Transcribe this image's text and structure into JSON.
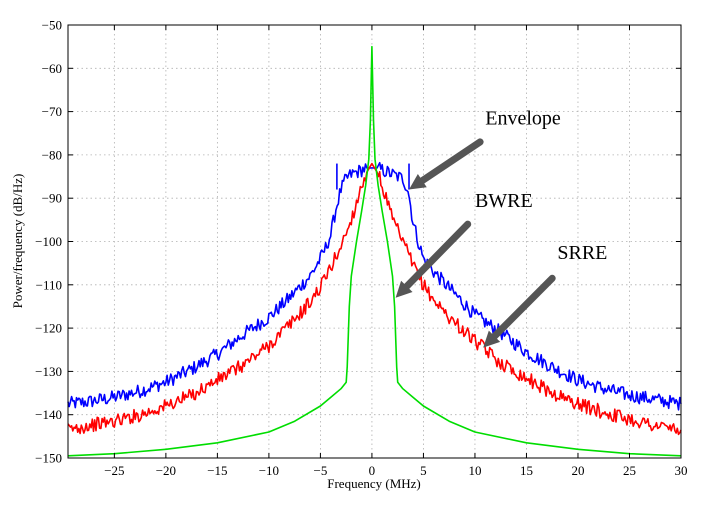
{
  "chart_data": {
    "type": "line",
    "title": "",
    "xlabel": "Frequency (MHz)",
    "ylabel": "Power/frequency (dB/Hz)",
    "xlim": [
      -29.5,
      30
    ],
    "ylim": [
      -150,
      -50
    ],
    "grid": true,
    "x_ticks": [
      -25,
      -20,
      -15,
      -10,
      -5,
      0,
      5,
      10,
      15,
      20,
      25,
      30
    ],
    "y_ticks": [
      -50,
      -60,
      -70,
      -80,
      -90,
      -100,
      -110,
      -120,
      -130,
      -140,
      -150
    ],
    "x_tick_labels": [
      "−25",
      "−20",
      "−15",
      "−10",
      "−5",
      "0",
      "5",
      "10",
      "15",
      "20",
      "25",
      "30"
    ],
    "y_tick_labels": [
      "−50",
      "−60",
      "−70",
      "−80",
      "−90",
      "−100",
      "−110",
      "−120",
      "−130",
      "−140",
      "−150"
    ],
    "series": [
      {
        "color": "#0000ff",
        "points": [
          [
            -29.5,
            -137.5
          ],
          [
            -27.5,
            -137
          ],
          [
            -25,
            -136
          ],
          [
            -22.5,
            -134.5
          ],
          [
            -20,
            -132.5
          ],
          [
            -17.5,
            -129.5
          ],
          [
            -15,
            -126
          ],
          [
            -12.5,
            -121.5
          ],
          [
            -10,
            -117.5
          ],
          [
            -8,
            -113
          ],
          [
            -6,
            -108
          ],
          [
            -5,
            -104
          ],
          [
            -4.5,
            -101.5
          ],
          [
            -4,
            -98.5
          ],
          [
            -3.5,
            -92.5
          ],
          [
            -3,
            -88
          ],
          [
            -2.5,
            -85.5
          ],
          [
            -2,
            -84.5
          ],
          [
            -1.5,
            -84
          ],
          [
            -1,
            -83.5
          ],
          [
            -0.5,
            -83
          ],
          [
            0,
            -83
          ],
          [
            0.5,
            -83
          ],
          [
            1,
            -83.5
          ],
          [
            1.5,
            -84
          ],
          [
            2,
            -84.5
          ],
          [
            2.5,
            -85
          ],
          [
            3,
            -85.5
          ],
          [
            3.5,
            -88
          ],
          [
            4,
            -95.5
          ],
          [
            4.5,
            -100
          ],
          [
            5,
            -104
          ],
          [
            6,
            -107
          ],
          [
            8,
            -112
          ],
          [
            10,
            -117
          ],
          [
            12.5,
            -121
          ],
          [
            15,
            -125.5
          ],
          [
            17.5,
            -129
          ],
          [
            20,
            -132
          ],
          [
            22.5,
            -134
          ],
          [
            25,
            -135.5
          ],
          [
            27.5,
            -136.5
          ],
          [
            30,
            -137.5
          ]
        ],
        "spikes": [
          [
            -3.4,
            -82
          ],
          [
            3.6,
            -82
          ]
        ]
      },
      {
        "color": "#ff0000",
        "points": [
          [
            -29.5,
            -143.5
          ],
          [
            -27.5,
            -142.5
          ],
          [
            -25,
            -141.5
          ],
          [
            -22.5,
            -140
          ],
          [
            -20,
            -138
          ],
          [
            -17.5,
            -135.5
          ],
          [
            -15,
            -132
          ],
          [
            -12.5,
            -128.5
          ],
          [
            -10,
            -124
          ],
          [
            -7.5,
            -118
          ],
          [
            -6,
            -114
          ],
          [
            -5,
            -110.5
          ],
          [
            -4,
            -106
          ],
          [
            -3,
            -101
          ],
          [
            -2,
            -95
          ],
          [
            -1.5,
            -91
          ],
          [
            -1,
            -87
          ],
          [
            -0.5,
            -84
          ],
          [
            0,
            -82
          ],
          [
            0.5,
            -84
          ],
          [
            1,
            -87
          ],
          [
            1.5,
            -91
          ],
          [
            2,
            -95
          ],
          [
            3,
            -100
          ],
          [
            4,
            -105.5
          ],
          [
            5,
            -110
          ],
          [
            6,
            -113.5
          ],
          [
            7.5,
            -117.5
          ],
          [
            10,
            -123
          ],
          [
            12.5,
            -128
          ],
          [
            15,
            -131.5
          ],
          [
            17.5,
            -135
          ],
          [
            20,
            -137.5
          ],
          [
            22.5,
            -139.5
          ],
          [
            25,
            -141
          ],
          [
            27.5,
            -142.5
          ],
          [
            30,
            -143.5
          ]
        ],
        "spikes": []
      },
      {
        "color": "#00dd00",
        "points": [
          [
            -29.5,
            -149.5
          ],
          [
            -25,
            -149
          ],
          [
            -20,
            -148
          ],
          [
            -15,
            -146.5
          ],
          [
            -10,
            -144
          ],
          [
            -7.5,
            -141.5
          ],
          [
            -5,
            -138
          ],
          [
            -4,
            -136
          ],
          [
            -3,
            -134
          ],
          [
            -2.5,
            -132.5
          ],
          [
            -2.4,
            -129
          ],
          [
            -2.2,
            -115
          ],
          [
            -2,
            -108
          ],
          [
            -1.5,
            -100
          ],
          [
            -1,
            -93
          ],
          [
            -0.6,
            -87
          ],
          [
            -0.3,
            -81
          ],
          [
            -0.15,
            -72
          ],
          [
            0,
            -55
          ],
          [
            0.15,
            -72
          ],
          [
            0.3,
            -81
          ],
          [
            0.6,
            -87
          ],
          [
            1,
            -93
          ],
          [
            1.5,
            -100
          ],
          [
            2,
            -108
          ],
          [
            2.2,
            -115
          ],
          [
            2.4,
            -129
          ],
          [
            2.5,
            -132.5
          ],
          [
            3,
            -134
          ],
          [
            4,
            -136
          ],
          [
            5,
            -138
          ],
          [
            7.5,
            -141.5
          ],
          [
            10,
            -144
          ],
          [
            15,
            -146.5
          ],
          [
            20,
            -148
          ],
          [
            25,
            -149
          ],
          [
            30,
            -149.5
          ]
        ],
        "spikes": []
      }
    ],
    "annotations": [
      {
        "text": "Envelope",
        "text_x": 11,
        "text_y": -73,
        "arrow_from": [
          10.5,
          -77
        ],
        "arrow_to": [
          3.6,
          -88
        ]
      },
      {
        "text": "BWRE",
        "text_x": 10,
        "text_y": -92,
        "arrow_from": [
          9.3,
          -96
        ],
        "arrow_to": [
          2.3,
          -113
        ]
      },
      {
        "text": "SRRE",
        "text_x": 18,
        "text_y": -104,
        "arrow_from": [
          17.5,
          -108.5
        ],
        "arrow_to": [
          10.8,
          -124.5
        ]
      }
    ]
  }
}
